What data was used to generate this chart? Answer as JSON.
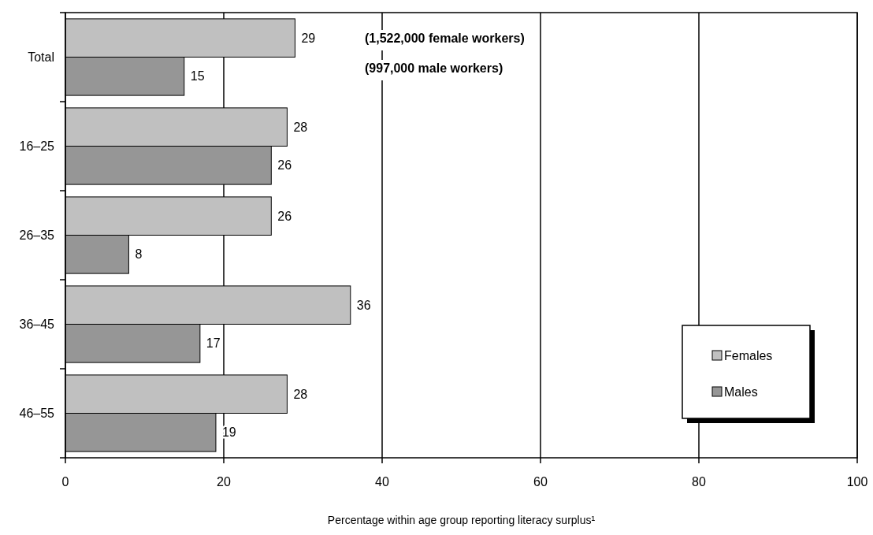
{
  "chart_data": {
    "type": "bar",
    "orientation": "horizontal",
    "categories": [
      "Total",
      "16–25",
      "26–35",
      "36–45",
      "46–55"
    ],
    "series": [
      {
        "name": "Females",
        "color": "#c0c0c0",
        "values": [
          29,
          28,
          26,
          36,
          28
        ]
      },
      {
        "name": "Males",
        "color": "#969696",
        "values": [
          15,
          26,
          8,
          17,
          19
        ]
      }
    ],
    "xlim": [
      0,
      100
    ],
    "xticks": [
      0,
      20,
      40,
      60,
      80,
      100
    ],
    "grid": "x",
    "legend": "bottom right",
    "data_labels": true,
    "xlabel": "Percentage within age group reporting literacy surplus¹",
    "annotations": [
      "(1,522,000 female workers)",
      "(997,000 male workers)"
    ]
  }
}
